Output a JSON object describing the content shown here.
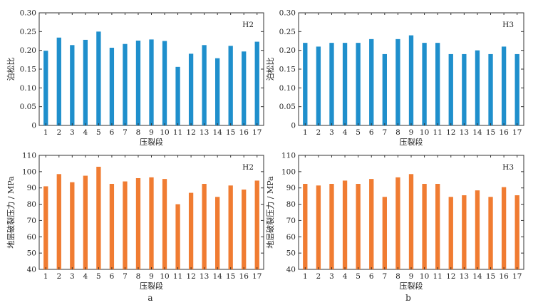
{
  "panel_letters": [
    "a",
    "b"
  ],
  "colors": {
    "blue": "#1f8fcc",
    "orange": "#f07c32",
    "axis": "#333333"
  },
  "chart_data": [
    {
      "type": "bar",
      "tag": "H2",
      "title": "",
      "xlabel": "压裂段",
      "ylabel": "泊松比",
      "categories": [
        "1",
        "2",
        "3",
        "4",
        "5",
        "6",
        "7",
        "8",
        "9",
        "10",
        "11",
        "12",
        "13",
        "14",
        "15",
        "16",
        "17"
      ],
      "values": [
        0.199,
        0.234,
        0.214,
        0.228,
        0.25,
        0.207,
        0.217,
        0.226,
        0.229,
        0.225,
        0.156,
        0.191,
        0.214,
        0.179,
        0.212,
        0.197,
        0.223
      ],
      "ylim": [
        0,
        0.3
      ],
      "yticks": [
        "0",
        "0.05",
        "0.10",
        "0.15",
        "0.20",
        "0.25",
        "0.30"
      ],
      "color": "#1f8fcc"
    },
    {
      "type": "bar",
      "tag": "H3",
      "title": "",
      "xlabel": "压裂段",
      "ylabel": "泊松比",
      "categories": [
        "1",
        "2",
        "3",
        "4",
        "5",
        "6",
        "7",
        "8",
        "9",
        "10",
        "11",
        "12",
        "13",
        "14",
        "15",
        "16",
        "17"
      ],
      "values": [
        0.22,
        0.21,
        0.22,
        0.22,
        0.22,
        0.23,
        0.19,
        0.23,
        0.24,
        0.22,
        0.22,
        0.19,
        0.19,
        0.2,
        0.19,
        0.21,
        0.19
      ],
      "ylim": [
        0,
        0.3
      ],
      "yticks": [
        "0",
        "0.05",
        "0.10",
        "0.15",
        "0.20",
        "0.25",
        "0.30"
      ],
      "color": "#1f8fcc"
    },
    {
      "type": "bar",
      "tag": "H2",
      "title": "",
      "xlabel": "压裂段",
      "ylabel": "地层破裂压力 / MPa",
      "categories": [
        "1",
        "2",
        "3",
        "4",
        "5",
        "6",
        "7",
        "8",
        "9",
        "10",
        "11",
        "12",
        "13",
        "14",
        "15",
        "16",
        "17"
      ],
      "values": [
        91,
        98.5,
        93.5,
        97.5,
        103,
        92.5,
        94,
        96,
        96.5,
        95.5,
        80,
        87,
        92.5,
        84.5,
        91.5,
        89,
        94.5
      ],
      "ylim": [
        40,
        110
      ],
      "yticks": [
        "40",
        "50",
        "60",
        "70",
        "80",
        "90",
        "100",
        "110"
      ],
      "color": "#f07c32"
    },
    {
      "type": "bar",
      "tag": "H3",
      "title": "",
      "xlabel": "压裂段",
      "ylabel": "地层破裂压力 / MPa",
      "categories": [
        "1",
        "2",
        "3",
        "4",
        "5",
        "6",
        "7",
        "8",
        "9",
        "10",
        "11",
        "12",
        "13",
        "14",
        "15",
        "16",
        "17"
      ],
      "values": [
        92.5,
        91.5,
        92.5,
        94.5,
        92.5,
        95.5,
        84.5,
        96.5,
        98.5,
        92.5,
        92.5,
        84.5,
        85.5,
        88.5,
        84.5,
        90.5,
        85.5
      ],
      "ylim": [
        40,
        110
      ],
      "yticks": [
        "40",
        "50",
        "60",
        "70",
        "80",
        "90",
        "100",
        "110"
      ],
      "color": "#f07c32"
    }
  ]
}
